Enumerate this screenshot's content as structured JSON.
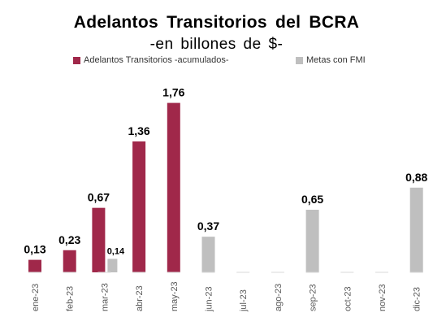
{
  "chart_data": {
    "type": "bar",
    "title": "Adelantos  Transitorios  del BCRA",
    "subtitle": "-en billones de $-",
    "categories": [
      "ene-23",
      "feb-23",
      "mar-23",
      "abr-23",
      "may-23",
      "jun-23",
      "jul-23",
      "ago-23",
      "sep-23",
      "oct-23",
      "nov-23",
      "dic-23"
    ],
    "series": [
      {
        "name": "Adelantos Transitorios -acumulados-",
        "color": "#A0284A",
        "values": [
          0.13,
          0.23,
          0.67,
          1.36,
          1.76,
          null,
          null,
          null,
          null,
          null,
          null,
          null
        ],
        "labels": [
          "0,13",
          "0,23",
          "0,67",
          "1,36",
          "1,76",
          "",
          "",
          "",
          "",
          "",
          "",
          ""
        ]
      },
      {
        "name": "Metas con FMI",
        "color": "#BFBFBF",
        "values": [
          null,
          null,
          0.14,
          null,
          null,
          0.37,
          null,
          null,
          0.65,
          null,
          null,
          0.88
        ],
        "labels": [
          "",
          "",
          "0,14",
          "",
          "",
          "0,37",
          "",
          "",
          "0,65",
          "",
          "",
          "0,88"
        ]
      }
    ],
    "ylim": [
      0,
      1.9
    ],
    "grid": false,
    "legend_position": "top"
  }
}
